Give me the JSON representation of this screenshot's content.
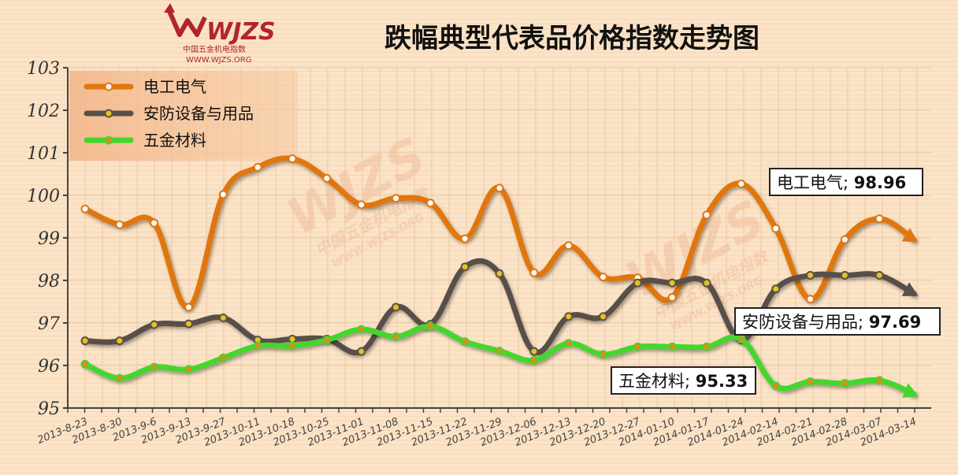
{
  "brand": {
    "logo_text": "WJZS",
    "logo_subtitle_cn": "中国五金机电指数",
    "logo_url_text": "WWW.WJZS.ORG"
  },
  "watermark": {
    "text": "WJZS",
    "cn": "中国五金机电指数",
    "url": "WWW.WJZS.ORG"
  },
  "chart_data": {
    "type": "line",
    "title": "跌幅典型代表品价格指数走势图",
    "xlabel": "",
    "ylabel": "",
    "ylim": [
      95,
      103
    ],
    "yticks": [
      95,
      96,
      97,
      98,
      99,
      100,
      101,
      102,
      103
    ],
    "grid": true,
    "legend_position": "top-left",
    "categories": [
      "2013-8-23",
      "2013-8-30",
      "2013-9-6",
      "2013-9-13",
      "2013-9-27",
      "2013-10-11",
      "2013-10-18",
      "2013-10-25",
      "2013-11-01",
      "2013-11-08",
      "2013-11-15",
      "2013-11-22",
      "2013-11-29",
      "2013-12-06",
      "2013-12-13",
      "2013-12-20",
      "2013-12-27",
      "2014-01-10",
      "2014-01-17",
      "2014-01-24",
      "2014-02-14",
      "2014-02-21",
      "2014-02-28",
      "2014-03-07",
      "2014-03-14"
    ],
    "series": [
      {
        "name": "电工电气",
        "color": "#e0760d",
        "marker_fill": "#ffffff",
        "values": [
          99.68,
          99.31,
          99.35,
          97.37,
          100.02,
          100.66,
          100.86,
          100.4,
          99.78,
          99.93,
          99.82,
          98.98,
          100.17,
          98.18,
          98.82,
          98.08,
          98.06,
          97.6,
          99.54,
          100.27,
          99.22,
          97.56,
          98.96,
          99.45,
          98.96
        ],
        "end_label": "电工电气;",
        "end_value": "98.96"
      },
      {
        "name": "安防设备与用品",
        "color": "#595049",
        "marker_fill": "#e5c21f",
        "values": [
          96.58,
          96.58,
          96.96,
          96.98,
          97.12,
          96.6,
          96.62,
          96.62,
          96.33,
          97.37,
          96.97,
          98.32,
          98.16,
          96.33,
          97.15,
          97.15,
          97.94,
          97.94,
          97.94,
          96.6,
          97.8,
          98.12,
          98.12,
          98.12,
          97.69
        ],
        "end_label": "安防设备与用品;",
        "end_value": "97.69"
      },
      {
        "name": "五金材料",
        "color": "#45d62d",
        "marker_fill": "#e08a1e",
        "values": [
          96.03,
          95.7,
          95.96,
          95.91,
          96.18,
          96.46,
          96.46,
          96.6,
          96.85,
          96.68,
          96.92,
          96.56,
          96.34,
          96.12,
          96.52,
          96.26,
          96.44,
          96.44,
          96.44,
          96.62,
          95.52,
          95.62,
          95.58,
          95.65,
          95.33
        ],
        "end_label": "五金材料;",
        "end_value": "95.33"
      }
    ]
  }
}
